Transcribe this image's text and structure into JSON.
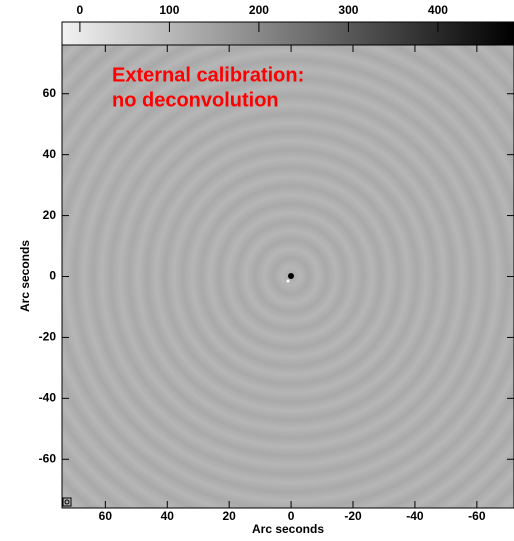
{
  "chart_data": {
    "type": "image",
    "annotation": [
      "External calibration:",
      "no deconvolution"
    ],
    "annotation_color": "#ff0000",
    "xlabel": "Arc seconds",
    "ylabel": "Arc seconds",
    "xlim": [
      74,
      -72
    ],
    "ylim": [
      -76,
      76
    ],
    "xticks": [
      60,
      40,
      20,
      0,
      -20,
      -40,
      -60
    ],
    "yticks": [
      -60,
      -40,
      -20,
      0,
      20,
      40,
      60
    ],
    "colorbar": {
      "lim": [
        -20,
        485
      ],
      "ticks": [
        0,
        100,
        200,
        300,
        400
      ]
    }
  }
}
